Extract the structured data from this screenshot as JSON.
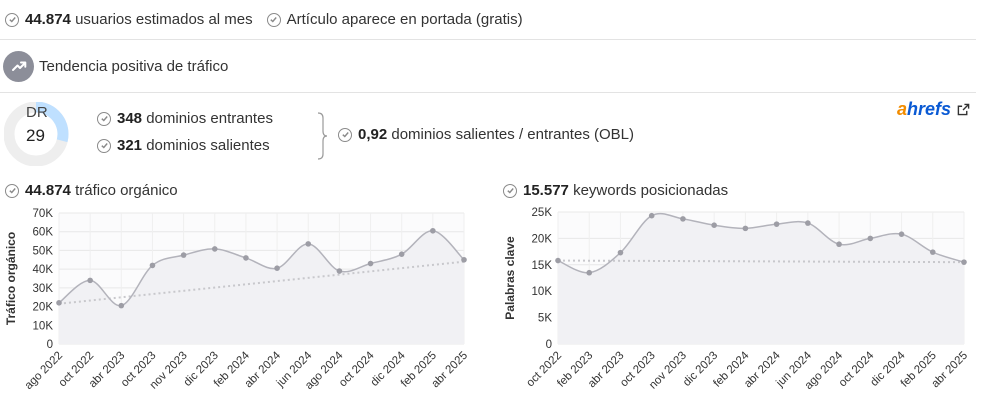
{
  "top": {
    "users": {
      "value": "44.874",
      "label": "usuarios estimados al mes"
    },
    "frontpage": {
      "label": "Artículo aparece en portada (gratis)"
    }
  },
  "trend": {
    "label": "Tendencia positiva de tráfico"
  },
  "dr": {
    "label": "DR",
    "value": "29",
    "fraction": 0.29
  },
  "domains": {
    "incoming": {
      "value": "348",
      "label": "dominios entrantes"
    },
    "outgoing": {
      "value": "321",
      "label": "dominios salientes"
    },
    "obl": {
      "value": "0,92",
      "label": "dominios salientes / entrantes (OBL)"
    }
  },
  "brand": {
    "a": "a",
    "rest": "hrefs"
  },
  "colors": {
    "accent": "#0a5ad4",
    "brand_orange": "#f28c00",
    "dr_fill": "#bfe0ff",
    "line": "#b3b3bb"
  },
  "icons": {
    "check": "check-circle-icon",
    "trend": "trending-up-icon",
    "external": "external-link-icon"
  },
  "traffic": {
    "value": "44.874",
    "label": "tráfico orgánico",
    "chart_data": {
      "type": "line",
      "ylabel": "Tráfico orgánico",
      "ylim": [
        0,
        70000
      ],
      "yticks": [
        "0",
        "10K",
        "20K",
        "30K",
        "40K",
        "50K",
        "60K",
        "70K"
      ],
      "x_tick_labels": [
        "ago 2022",
        "oct 2022",
        "abr 2023",
        "oct 2023",
        "nov 2023",
        "dic 2023",
        "feb 2024",
        "abr 2024",
        "jun 2024",
        "ago 2024",
        "oct 2024",
        "dic 2024",
        "feb 2025",
        "abr 2025"
      ],
      "series": [
        {
          "values": [
            22000,
            34000,
            20500,
            42000,
            47500,
            50800,
            46000,
            40500,
            53500,
            39000,
            43000,
            48000,
            60500,
            45000
          ]
        }
      ],
      "trendline": [
        21500,
        44000
      ],
      "grid": true
    }
  },
  "keywords": {
    "value": "15.577",
    "label": "keywords posicionadas",
    "chart_data": {
      "type": "line",
      "ylabel": "Palabras clave",
      "ylim": [
        0,
        25000
      ],
      "yticks": [
        "0",
        "5K",
        "10K",
        "15K",
        "20K",
        "25K"
      ],
      "x_tick_labels": [
        "oct 2022",
        "feb 2023",
        "abr 2023",
        "oct 2023",
        "nov 2023",
        "dic 2023",
        "feb 2024",
        "abr 2024",
        "jun 2024",
        "ago 2024",
        "oct 2024",
        "dic 2024",
        "feb 2025",
        "abr 2025"
      ],
      "series": [
        {
          "values": [
            15800,
            13500,
            17300,
            24300,
            23700,
            22500,
            21900,
            22700,
            22900,
            18900,
            20000,
            20800,
            17400,
            15500
          ]
        }
      ],
      "trendline": [
        15800,
        15500
      ],
      "grid": true
    }
  }
}
